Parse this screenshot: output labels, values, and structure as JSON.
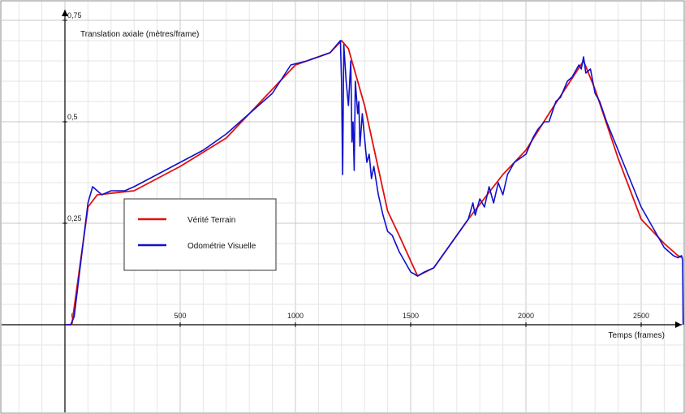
{
  "chart_data": {
    "type": "line",
    "ylabel": "Translation axiale (mètres/frame)",
    "xlabel": "Temps (frames)",
    "xlim": [
      -200,
      2700
    ],
    "ylim": [
      -0.1,
      0.75
    ],
    "x_ticks": [
      0,
      500,
      1000,
      1500,
      2000,
      2500
    ],
    "x_tick_labels": [
      "0",
      "500",
      "1000",
      "1500",
      "2000",
      "2500"
    ],
    "y_ticks": [
      0.25,
      0.5,
      0.75
    ],
    "y_tick_labels": [
      "0,25",
      "0,5",
      "0,75"
    ],
    "grid": true,
    "legend_position": "center-left",
    "series": [
      {
        "name": "Vérité Terrain",
        "color": "#e01010",
        "x": [
          0,
          30,
          100,
          140,
          300,
          500,
          700,
          850,
          1000,
          1150,
          1200,
          1230,
          1300,
          1400,
          1450,
          1530,
          1600,
          1750,
          1900,
          2000,
          2100,
          2250,
          2300,
          2400,
          2500,
          2600,
          2660,
          2680
        ],
        "y": [
          0,
          0,
          0.29,
          0.32,
          0.33,
          0.39,
          0.46,
          0.55,
          0.64,
          0.67,
          0.7,
          0.68,
          0.54,
          0.28,
          0.22,
          0.12,
          0.14,
          0.26,
          0.37,
          0.43,
          0.52,
          0.65,
          0.58,
          0.41,
          0.26,
          0.2,
          0.17,
          0.165
        ]
      },
      {
        "name": "Odométrie Visuelle",
        "color": "#1010cc",
        "x": [
          0,
          25,
          40,
          100,
          120,
          140,
          160,
          200,
          260,
          300,
          400,
          500,
          600,
          700,
          800,
          900,
          980,
          1050,
          1100,
          1150,
          1180,
          1195,
          1200,
          1205,
          1210,
          1220,
          1230,
          1240,
          1245,
          1250,
          1255,
          1260,
          1270,
          1275,
          1280,
          1290,
          1300,
          1310,
          1320,
          1330,
          1340,
          1360,
          1380,
          1400,
          1420,
          1450,
          1480,
          1500,
          1530,
          1560,
          1600,
          1650,
          1700,
          1750,
          1770,
          1780,
          1800,
          1820,
          1840,
          1860,
          1880,
          1900,
          1920,
          1950,
          2000,
          2030,
          2050,
          2080,
          2100,
          2130,
          2150,
          2180,
          2200,
          2230,
          2240,
          2250,
          2260,
          2280,
          2300,
          2320,
          2350,
          2400,
          2450,
          2500,
          2550,
          2600,
          2640,
          2660,
          2675,
          2680,
          2682
        ],
        "y": [
          0,
          0,
          0.02,
          0.3,
          0.34,
          0.33,
          0.32,
          0.33,
          0.33,
          0.34,
          0.37,
          0.4,
          0.43,
          0.47,
          0.52,
          0.57,
          0.64,
          0.65,
          0.66,
          0.67,
          0.69,
          0.7,
          0.6,
          0.37,
          0.69,
          0.6,
          0.54,
          0.65,
          0.45,
          0.5,
          0.38,
          0.6,
          0.52,
          0.55,
          0.44,
          0.52,
          0.46,
          0.4,
          0.42,
          0.36,
          0.39,
          0.32,
          0.27,
          0.23,
          0.22,
          0.18,
          0.15,
          0.13,
          0.12,
          0.13,
          0.14,
          0.18,
          0.22,
          0.26,
          0.3,
          0.27,
          0.31,
          0.29,
          0.34,
          0.3,
          0.35,
          0.32,
          0.37,
          0.4,
          0.42,
          0.46,
          0.48,
          0.5,
          0.5,
          0.55,
          0.56,
          0.6,
          0.61,
          0.64,
          0.63,
          0.66,
          0.62,
          0.63,
          0.57,
          0.55,
          0.5,
          0.43,
          0.36,
          0.29,
          0.24,
          0.19,
          0.17,
          0.165,
          0.17,
          0.16,
          0
        ]
      }
    ]
  }
}
